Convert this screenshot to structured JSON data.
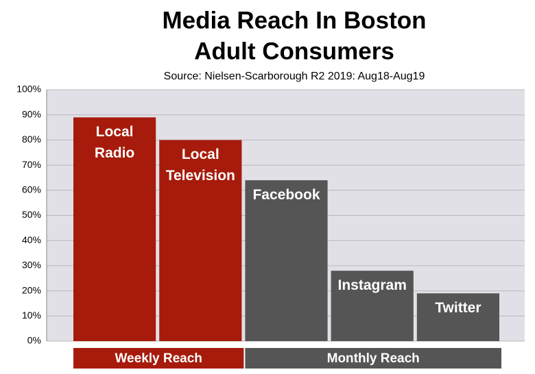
{
  "chart_data": {
    "type": "bar",
    "title": [
      "Media Reach In Boston",
      "Adult Consumers"
    ],
    "subtitle": "Source: Nielsen-Scarborough R2 2019: Aug18-Aug19",
    "categories": [
      "Local Radio",
      "Local Television",
      "Facebook",
      "Instagram",
      "Twitter"
    ],
    "values": [
      89,
      80,
      64,
      28,
      19
    ],
    "groups": [
      {
        "name": "Weekly Reach",
        "color": "#a61b0b",
        "count": 2
      },
      {
        "name": "Monthly Reach",
        "color": "#555555",
        "count": 3
      }
    ],
    "ylim": [
      0,
      100
    ],
    "yticks": [
      {
        "value": 0,
        "label": "0%"
      },
      {
        "value": 10,
        "label": "10%"
      },
      {
        "value": 20,
        "label": "20%"
      },
      {
        "value": 30,
        "label": "30%"
      },
      {
        "value": 40,
        "label": "40%"
      },
      {
        "value": 50,
        "label": "50%"
      },
      {
        "value": 60,
        "label": "60%"
      },
      {
        "value": 70,
        "label": "70%"
      },
      {
        "value": 80,
        "label": "80%"
      },
      {
        "value": 90,
        "label": "90%"
      },
      {
        "value": 100,
        "label": "100%"
      }
    ],
    "grid": true
  }
}
